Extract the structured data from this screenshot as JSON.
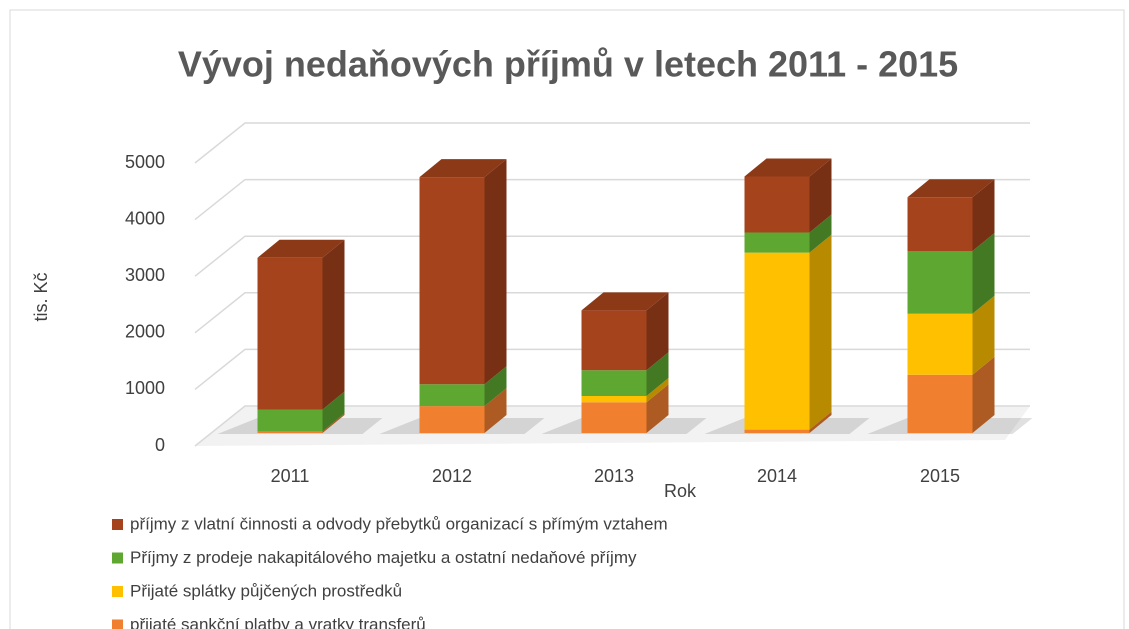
{
  "chart_data": {
    "type": "bar3d-stacked",
    "title": "Vývoj nedaňových příjmů v letech 2011 - 2015",
    "x_label": "Rok",
    "y_label": "tis. Kč",
    "categories": [
      "2011",
      "2012",
      "2013",
      "2014",
      "2015"
    ],
    "series": [
      {
        "name": "příjmy z vlatní činnosti a odvody přebytků organizací s přímým vztahem",
        "color": "#a5431c",
        "values": [
          2710,
          3700,
          1070,
          1000,
          960
        ]
      },
      {
        "name": "Příjmy z prodeje nakapitálového majetku a ostatní nedaňové příjmy",
        "color": "#5ea832",
        "values": [
          390,
          390,
          460,
          360,
          1120
        ]
      },
      {
        "name": "Přijaté splátky půjčených prostředků",
        "color": "#ffc000",
        "values": [
          0,
          0,
          110,
          3160,
          1090
        ]
      },
      {
        "name": "přijaté sankční platby a vratky transferů",
        "color": "#f07f2f",
        "values": [
          30,
          480,
          550,
          60,
          1040
        ]
      }
    ],
    "ylim": [
      0,
      5000
    ],
    "yticks": [
      0,
      1000,
      2000,
      3000,
      4000,
      5000
    ],
    "grid": true
  }
}
